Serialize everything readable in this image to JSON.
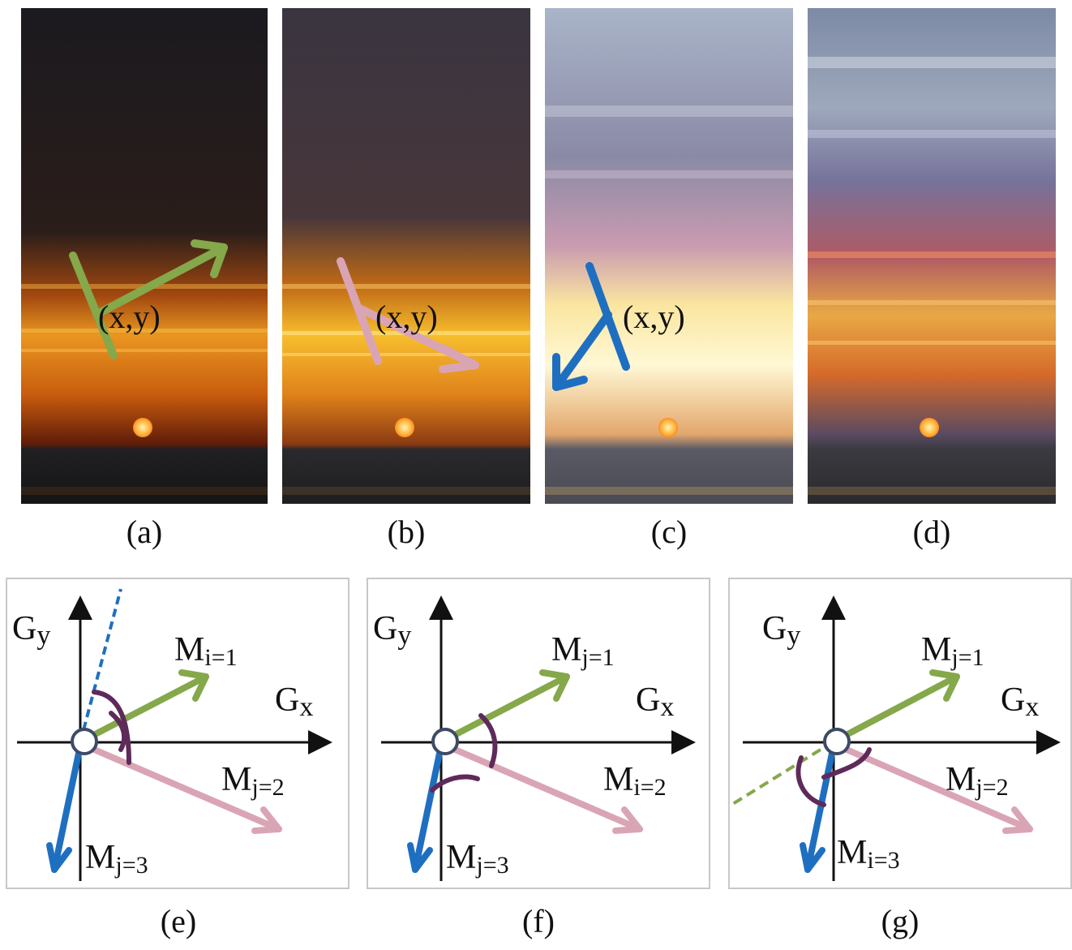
{
  "photos": [
    {
      "id": "a",
      "caption": "(a)",
      "coord_label": "(x,y)",
      "vector_color": "#85a84b"
    },
    {
      "id": "b",
      "caption": "(b)",
      "coord_label": "(x,y)",
      "vector_color": "#d9a5b5"
    },
    {
      "id": "c",
      "caption": "(c)",
      "coord_label": "(x,y)",
      "vector_color": "#1f6fc1"
    },
    {
      "id": "d",
      "caption": "(d)"
    }
  ],
  "diagrams": [
    {
      "id": "e",
      "caption": "(e)",
      "axis_y": "G",
      "axis_y_sub": "y",
      "axis_x": "G",
      "axis_x_sub": "x",
      "m1": "M",
      "m1_sub": "i=1",
      "m2": "M",
      "m2_sub": "j=2",
      "m3": "M",
      "m3_sub": "j=3"
    },
    {
      "id": "f",
      "caption": "(f)",
      "axis_y": "G",
      "axis_y_sub": "y",
      "axis_x": "G",
      "axis_x_sub": "x",
      "m1": "M",
      "m1_sub": "j=1",
      "m2": "M",
      "m2_sub": "i=2",
      "m3": "M",
      "m3_sub": "j=3"
    },
    {
      "id": "g",
      "caption": "(g)",
      "axis_y": "G",
      "axis_y_sub": "y",
      "axis_x": "G",
      "axis_x_sub": "x",
      "m1": "M",
      "m1_sub": "j=1",
      "m2": "M",
      "m2_sub": "j=2",
      "m3": "M",
      "m3_sub": "i=3"
    }
  ],
  "colors": {
    "green": "#85a84b",
    "pink": "#d9a5b5",
    "blue": "#1f6fc1",
    "purple": "#5e2a5a",
    "axis": "#111111"
  }
}
